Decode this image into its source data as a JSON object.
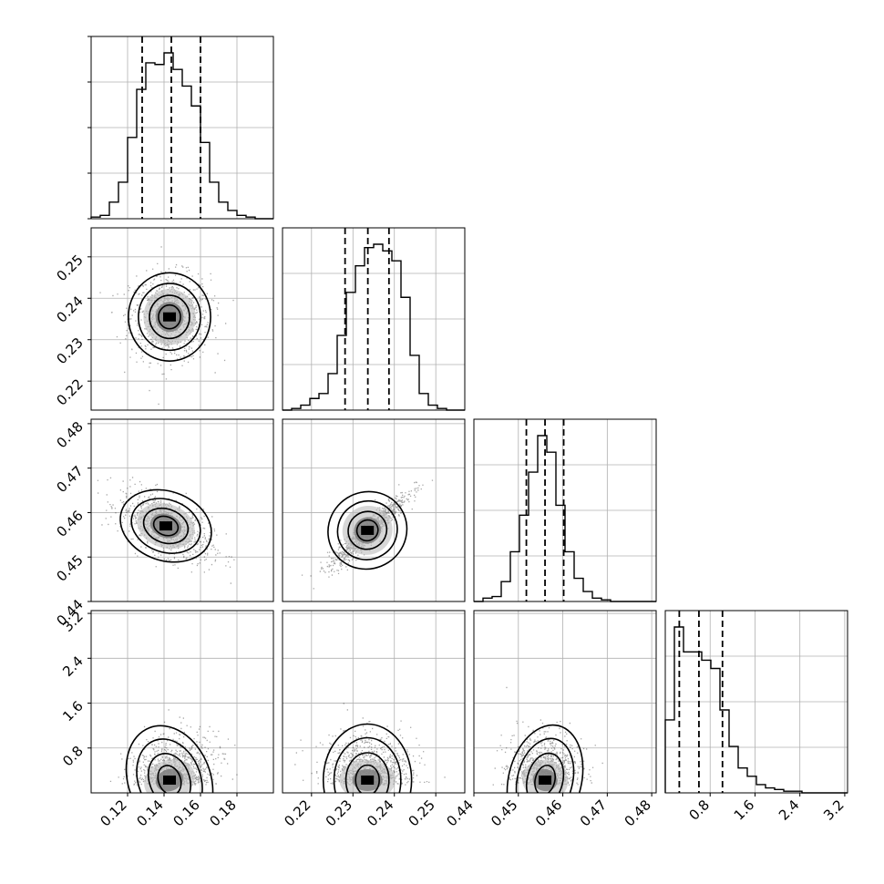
{
  "chart_data": {
    "type": "corner",
    "parameters": [
      {
        "index": 0,
        "range": [
          0.1,
          0.2
        ],
        "ticks": [
          0.12,
          0.14,
          0.16,
          0.18
        ],
        "tick_labels": [
          "0.12",
          "0.14",
          "0.16",
          "0.18"
        ]
      },
      {
        "index": 1,
        "range": [
          0.213,
          0.257
        ],
        "ticks": [
          0.22,
          0.23,
          0.24,
          0.25
        ],
        "tick_labels": [
          "0.22",
          "0.23",
          "0.24",
          "0.25"
        ]
      },
      {
        "index": 2,
        "range": [
          0.44,
          0.481
        ],
        "ticks": [
          0.44,
          0.45,
          0.46,
          0.47,
          0.48
        ],
        "tick_labels": [
          "0.44",
          "0.45",
          "0.46",
          "0.47",
          "0.48"
        ]
      },
      {
        "index": 3,
        "range": [
          0.0,
          3.25
        ],
        "ticks": [
          0.8,
          1.6,
          2.4,
          3.2
        ],
        "tick_labels": [
          "0.8",
          "1.6",
          "2.4",
          "3.2"
        ]
      }
    ],
    "histograms": [
      {
        "param": 0,
        "bin_start": 0.1,
        "bin_width": 0.005,
        "counts": [
          1,
          2,
          10,
          22,
          49,
          78,
          94,
          93,
          100,
          90,
          80,
          68,
          46,
          22,
          10,
          5,
          2,
          1,
          0,
          0
        ],
        "quantile_lines": [
          0.128,
          0.144,
          0.16
        ]
      },
      {
        "param": 1,
        "bin_start": 0.213,
        "bin_width": 0.0022,
        "counts": [
          0,
          1,
          3,
          7,
          10,
          22,
          45,
          71,
          87,
          98,
          100,
          96,
          90,
          68,
          33,
          10,
          3,
          1,
          0,
          0
        ],
        "quantile_lines": [
          0.2281,
          0.2336,
          0.2387
        ]
      },
      {
        "param": 2,
        "bin_start": 0.44,
        "bin_width": 0.00205,
        "counts": [
          0,
          2,
          3,
          12,
          30,
          52,
          78,
          100,
          90,
          58,
          30,
          14,
          6,
          2,
          1,
          0,
          0,
          0,
          0,
          0
        ],
        "quantile_lines": [
          0.4518,
          0.456,
          0.4602
        ]
      },
      {
        "param": 3,
        "bin_start": 0.0,
        "bin_width": 0.1625,
        "counts": [
          44,
          100,
          85,
          85,
          80,
          75,
          50,
          28,
          15,
          10,
          5,
          3,
          2,
          1,
          1,
          0,
          0,
          0,
          0,
          0
        ],
        "quantile_lines": [
          0.25,
          0.6,
          1.02
        ]
      }
    ],
    "pairs": [
      {
        "x": 0,
        "y": 1,
        "center": [
          0.143,
          0.2355
        ],
        "spread": [
          0.011,
          0.0052
        ],
        "corr": 0.0,
        "shape": "bimodal"
      },
      {
        "x": 0,
        "y": 2,
        "center": [
          0.141,
          0.457
        ],
        "spread": [
          0.0125,
          0.0038
        ],
        "corr": -0.55,
        "shape": "gaussian"
      },
      {
        "x": 1,
        "y": 2,
        "center": [
          0.2335,
          0.456
        ],
        "spread": [
          0.0047,
          0.0042
        ],
        "corr": 0.93,
        "shape": "bimodal"
      },
      {
        "x": 0,
        "y": 3,
        "center": [
          0.143,
          0.65
        ],
        "spread": [
          0.011,
          0.45
        ],
        "corr": 0.6,
        "shape": "skewed"
      },
      {
        "x": 1,
        "y": 3,
        "center": [
          0.2335,
          0.65
        ],
        "spread": [
          0.0052,
          0.45
        ],
        "corr": 0.0,
        "shape": "skewed"
      },
      {
        "x": 2,
        "y": 3,
        "center": [
          0.456,
          0.65
        ],
        "spread": [
          0.004,
          0.45
        ],
        "corr": -0.4,
        "shape": "skewed"
      }
    ],
    "grid": true,
    "contour_levels": [
      "0.5 sigma",
      "1 sigma",
      "1.5 sigma",
      "2 sigma"
    ]
  }
}
